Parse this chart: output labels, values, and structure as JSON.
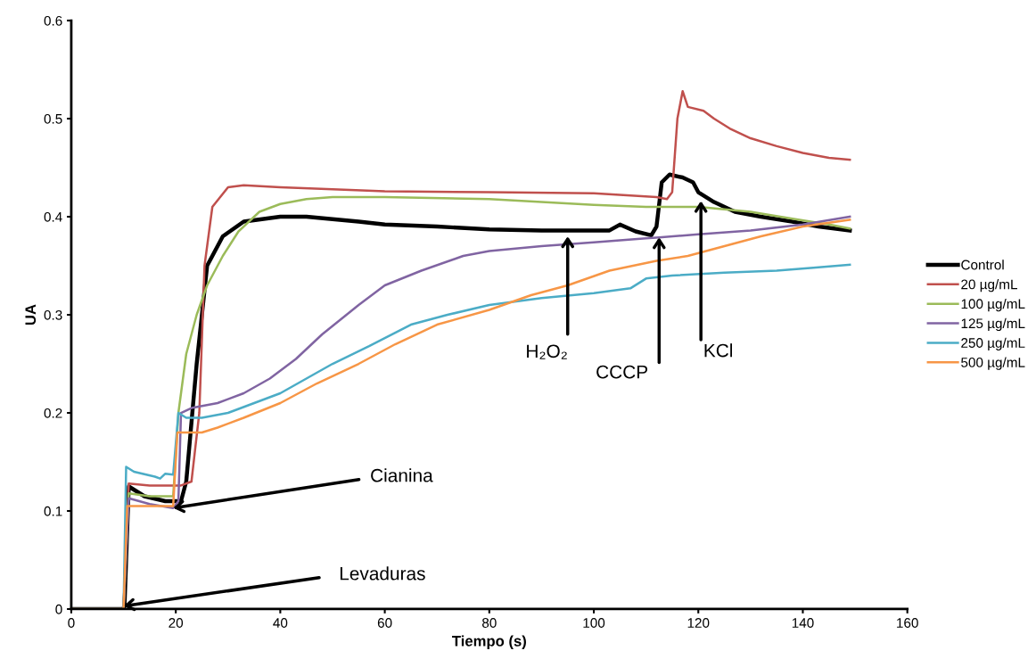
{
  "chart_data": {
    "type": "line",
    "xlabel": "Tiempo (s)",
    "ylabel": "UA",
    "xlim": [
      0,
      160
    ],
    "xticks": [
      0,
      20,
      40,
      60,
      80,
      100,
      120,
      140,
      160
    ],
    "ylim": [
      0,
      0.6
    ],
    "yticks": [
      0,
      0.1,
      0.2,
      0.3,
      0.4,
      0.5,
      0.6
    ],
    "grid": false,
    "legend": "right",
    "marker": "none",
    "line_style": "solid",
    "series": [
      {
        "name": "Control",
        "color": "#000000",
        "x": [
          0,
          10,
          10.2,
          11,
          14,
          18,
          21,
          22,
          24,
          26,
          29,
          33,
          40,
          45,
          55,
          60,
          70,
          80,
          90,
          100,
          103,
          105,
          108,
          111,
          112,
          113,
          114.5,
          117,
          119,
          120,
          123,
          127,
          132,
          138,
          143,
          149
        ],
        "values": [
          0,
          0,
          0.005,
          0.125,
          0.115,
          0.11,
          0.11,
          0.13,
          0.25,
          0.35,
          0.38,
          0.395,
          0.4,
          0.4,
          0.395,
          0.392,
          0.39,
          0.387,
          0.386,
          0.386,
          0.386,
          0.392,
          0.385,
          0.381,
          0.39,
          0.435,
          0.443,
          0.44,
          0.435,
          0.425,
          0.415,
          0.405,
          0.4,
          0.395,
          0.39,
          0.386
        ]
      },
      {
        "name": "20 µg/mL",
        "color": "#c0504d",
        "x": [
          0,
          10,
          11,
          15,
          21,
          23,
          24.5,
          25.5,
          27,
          30,
          33,
          40,
          50,
          60,
          80,
          100,
          112,
          114,
          115,
          116,
          117,
          118,
          121,
          123,
          126,
          130,
          135,
          140,
          145,
          149
        ],
        "values": [
          0,
          0,
          0.128,
          0.126,
          0.126,
          0.13,
          0.2,
          0.35,
          0.41,
          0.43,
          0.432,
          0.43,
          0.428,
          0.426,
          0.425,
          0.424,
          0.42,
          0.418,
          0.425,
          0.5,
          0.528,
          0.512,
          0.508,
          0.5,
          0.49,
          0.48,
          0.472,
          0.465,
          0.46,
          0.458
        ]
      },
      {
        "name": "100 µg/mL",
        "color": "#9bbb59",
        "x": [
          0,
          10,
          11,
          15,
          19.5,
          20.5,
          22,
          24,
          26,
          29,
          32,
          36,
          40,
          45,
          50,
          60,
          80,
          90,
          100,
          110,
          120,
          130,
          138,
          145,
          149
        ],
        "values": [
          0,
          0,
          0.118,
          0.115,
          0.115,
          0.2,
          0.26,
          0.3,
          0.33,
          0.36,
          0.385,
          0.405,
          0.413,
          0.418,
          0.42,
          0.42,
          0.418,
          0.415,
          0.412,
          0.41,
          0.41,
          0.405,
          0.398,
          0.392,
          0.388
        ]
      },
      {
        "name": "125 µg/mL",
        "color": "#8064a2",
        "x": [
          0,
          10,
          11,
          15,
          19.5,
          20.5,
          21,
          23,
          28,
          33,
          38,
          43,
          48,
          55,
          60,
          67,
          75,
          80,
          90,
          100,
          110,
          112.5,
          120,
          130,
          140,
          149
        ],
        "values": [
          0,
          0,
          0.113,
          0.107,
          0.103,
          0.11,
          0.2,
          0.205,
          0.21,
          0.22,
          0.235,
          0.255,
          0.28,
          0.31,
          0.33,
          0.345,
          0.36,
          0.365,
          0.37,
          0.374,
          0.378,
          0.379,
          0.382,
          0.386,
          0.392,
          0.4
        ]
      },
      {
        "name": "250 µg/mL",
        "color": "#4bacc6",
        "x": [
          0,
          10,
          10.5,
          12,
          16,
          17,
          18,
          19.5,
          20.5,
          22,
          25,
          30,
          35,
          40,
          45,
          50,
          57,
          65,
          72,
          80,
          90,
          100,
          107,
          110,
          115,
          125,
          135,
          142,
          149
        ],
        "values": [
          0,
          0,
          0.145,
          0.14,
          0.135,
          0.133,
          0.138,
          0.137,
          0.2,
          0.195,
          0.195,
          0.2,
          0.21,
          0.22,
          0.235,
          0.25,
          0.268,
          0.29,
          0.3,
          0.31,
          0.317,
          0.322,
          0.327,
          0.337,
          0.34,
          0.343,
          0.345,
          0.348,
          0.351
        ]
      },
      {
        "name": "500 µg/mL",
        "color": "#f79646",
        "x": [
          0,
          10,
          10.7,
          19.5,
          20.3,
          25,
          28,
          33,
          40,
          47,
          55,
          62,
          70,
          80,
          88,
          95,
          103,
          112,
          118,
          125,
          132,
          140,
          149
        ],
        "values": [
          0,
          0,
          0.105,
          0.105,
          0.18,
          0.18,
          0.185,
          0.195,
          0.21,
          0.23,
          0.25,
          0.27,
          0.29,
          0.305,
          0.32,
          0.33,
          0.345,
          0.355,
          0.36,
          0.37,
          0.38,
          0.39,
          0.397
        ]
      }
    ],
    "annotations": [
      {
        "text": "Cianina",
        "x": 19.5,
        "y": 0.103
      },
      {
        "text": "Levaduras",
        "x": 10,
        "y": 0.003
      },
      {
        "text": "H₂O₂",
        "x": 95,
        "y": 0.38
      },
      {
        "text": "CCCP",
        "x": 112.5,
        "y": 0.379
      },
      {
        "text": "KCl",
        "x": 120.5,
        "y": 0.416
      }
    ]
  }
}
